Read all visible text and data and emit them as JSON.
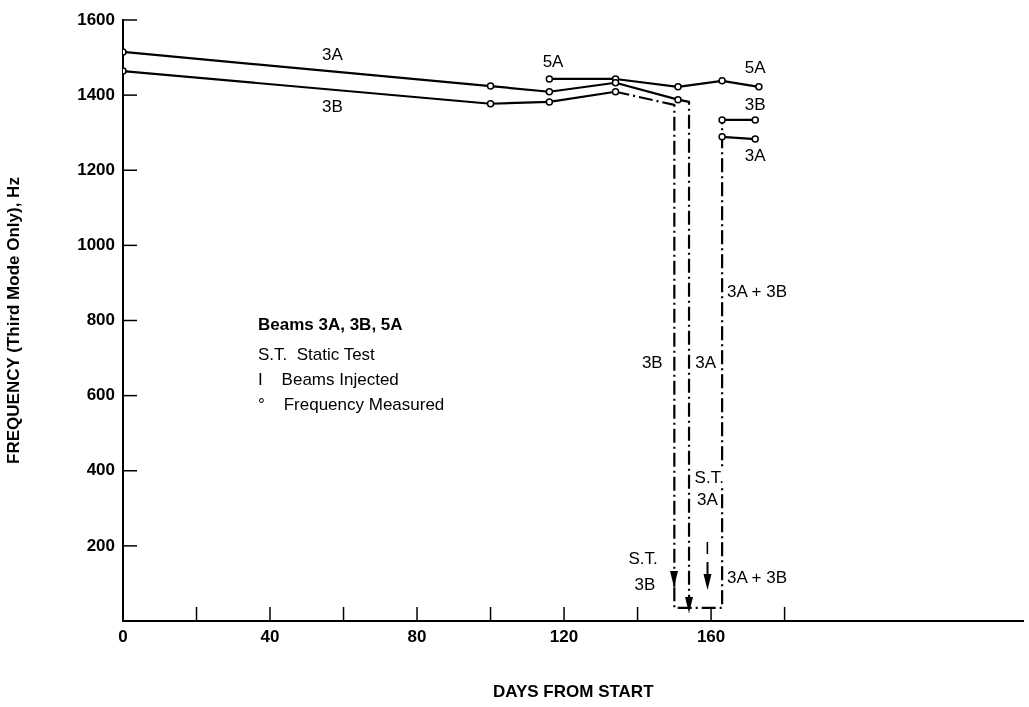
{
  "chart_data": {
    "type": "line",
    "xlabel": "DAYS FROM START",
    "ylabel": "FREQUENCY (Third Mode Only), Hz",
    "xlim": [
      0,
      245
    ],
    "ylim": [
      0,
      1600
    ],
    "xticks": [
      0,
      {
        "value": 20,
        "label": null
      },
      40,
      {
        "value": 60,
        "label": null
      },
      80,
      {
        "value": 100,
        "label": null
      },
      120,
      {
        "value": 140,
        "label": null
      },
      160,
      {
        "value": 180,
        "label": null
      }
    ],
    "yticks": [
      200,
      400,
      600,
      800,
      1000,
      1200,
      1400,
      1600
    ],
    "grid": false,
    "legend": false,
    "marker": "circle",
    "line_style": "solid",
    "series": [
      {
        "color": "#000000",
        "x": [
          0,
          100,
          116,
          134,
          151
        ],
        "values": [
          1515,
          1424,
          1409,
          1433,
          1388
        ]
      },
      {
        "color": "#000000",
        "x": [
          0,
          100,
          116,
          134
        ],
        "values": [
          1464,
          1377,
          1382,
          1409
        ]
      },
      {
        "color": "#000000",
        "x": [
          116,
          134,
          151,
          163,
          173
        ],
        "values": [
          1443,
          1443,
          1422,
          1438,
          1422
        ]
      },
      {
        "color": "#000000",
        "x": [
          163,
          172
        ],
        "values": [
          1289,
          1283
        ]
      },
      {
        "color": "#000000",
        "x": [
          163,
          172
        ],
        "values": [
          1334,
          1334
        ]
      },
      {
        "color": "#000000",
        "x": [
          134,
          150,
          150
        ],
        "values": [
          1409,
          1374,
          90
        ],
        "marker": "none",
        "line_style": "dashed"
      },
      {
        "color": "#000000",
        "x": [
          151,
          154,
          154
        ],
        "values": [
          1388,
          1382,
          21
        ],
        "marker": "none",
        "line_style": "dashed"
      },
      {
        "color": "#000000",
        "x": [
          150,
          150,
          163,
          163
        ],
        "values": [
          90,
          35,
          35,
          1334
        ],
        "marker": "none",
        "line_style": "dashed"
      }
    ],
    "annotations": [
      "Beams 3A, 3B, 5A",
      "S.T.  Static Test",
      "I    Beams Injected",
      "°    Frequency Measured",
      {
        "text": "3A",
        "x": 57,
        "y": 1507
      },
      {
        "text": "3B",
        "x": 57,
        "y": 1368
      },
      {
        "text": "5A",
        "x": 117,
        "y": 1488
      },
      {
        "text": "5A",
        "x": 172,
        "y": 1472
      },
      {
        "text": "3B",
        "x": 172,
        "y": 1374
      },
      {
        "text": "3A",
        "x": 172,
        "y": 1236
      },
      "3A + 3B",
      {
        "text": "3B",
        "x": 144,
        "y": 687
      },
      {
        "text": "3A",
        "x": 158.5,
        "y": 687
      },
      {
        "text": "S.T.",
        "x": 159.5,
        "y": 381
      },
      {
        "text": "3A",
        "x": 159,
        "y": 322
      },
      {
        "text": "S.T.",
        "x": 141.5,
        "y": 163
      },
      {
        "text": "3B",
        "x": 142,
        "y": 96
      },
      "3A + 3B",
      {
        "text": "I",
        "x": 159,
        "y": 190
      }
    ]
  }
}
